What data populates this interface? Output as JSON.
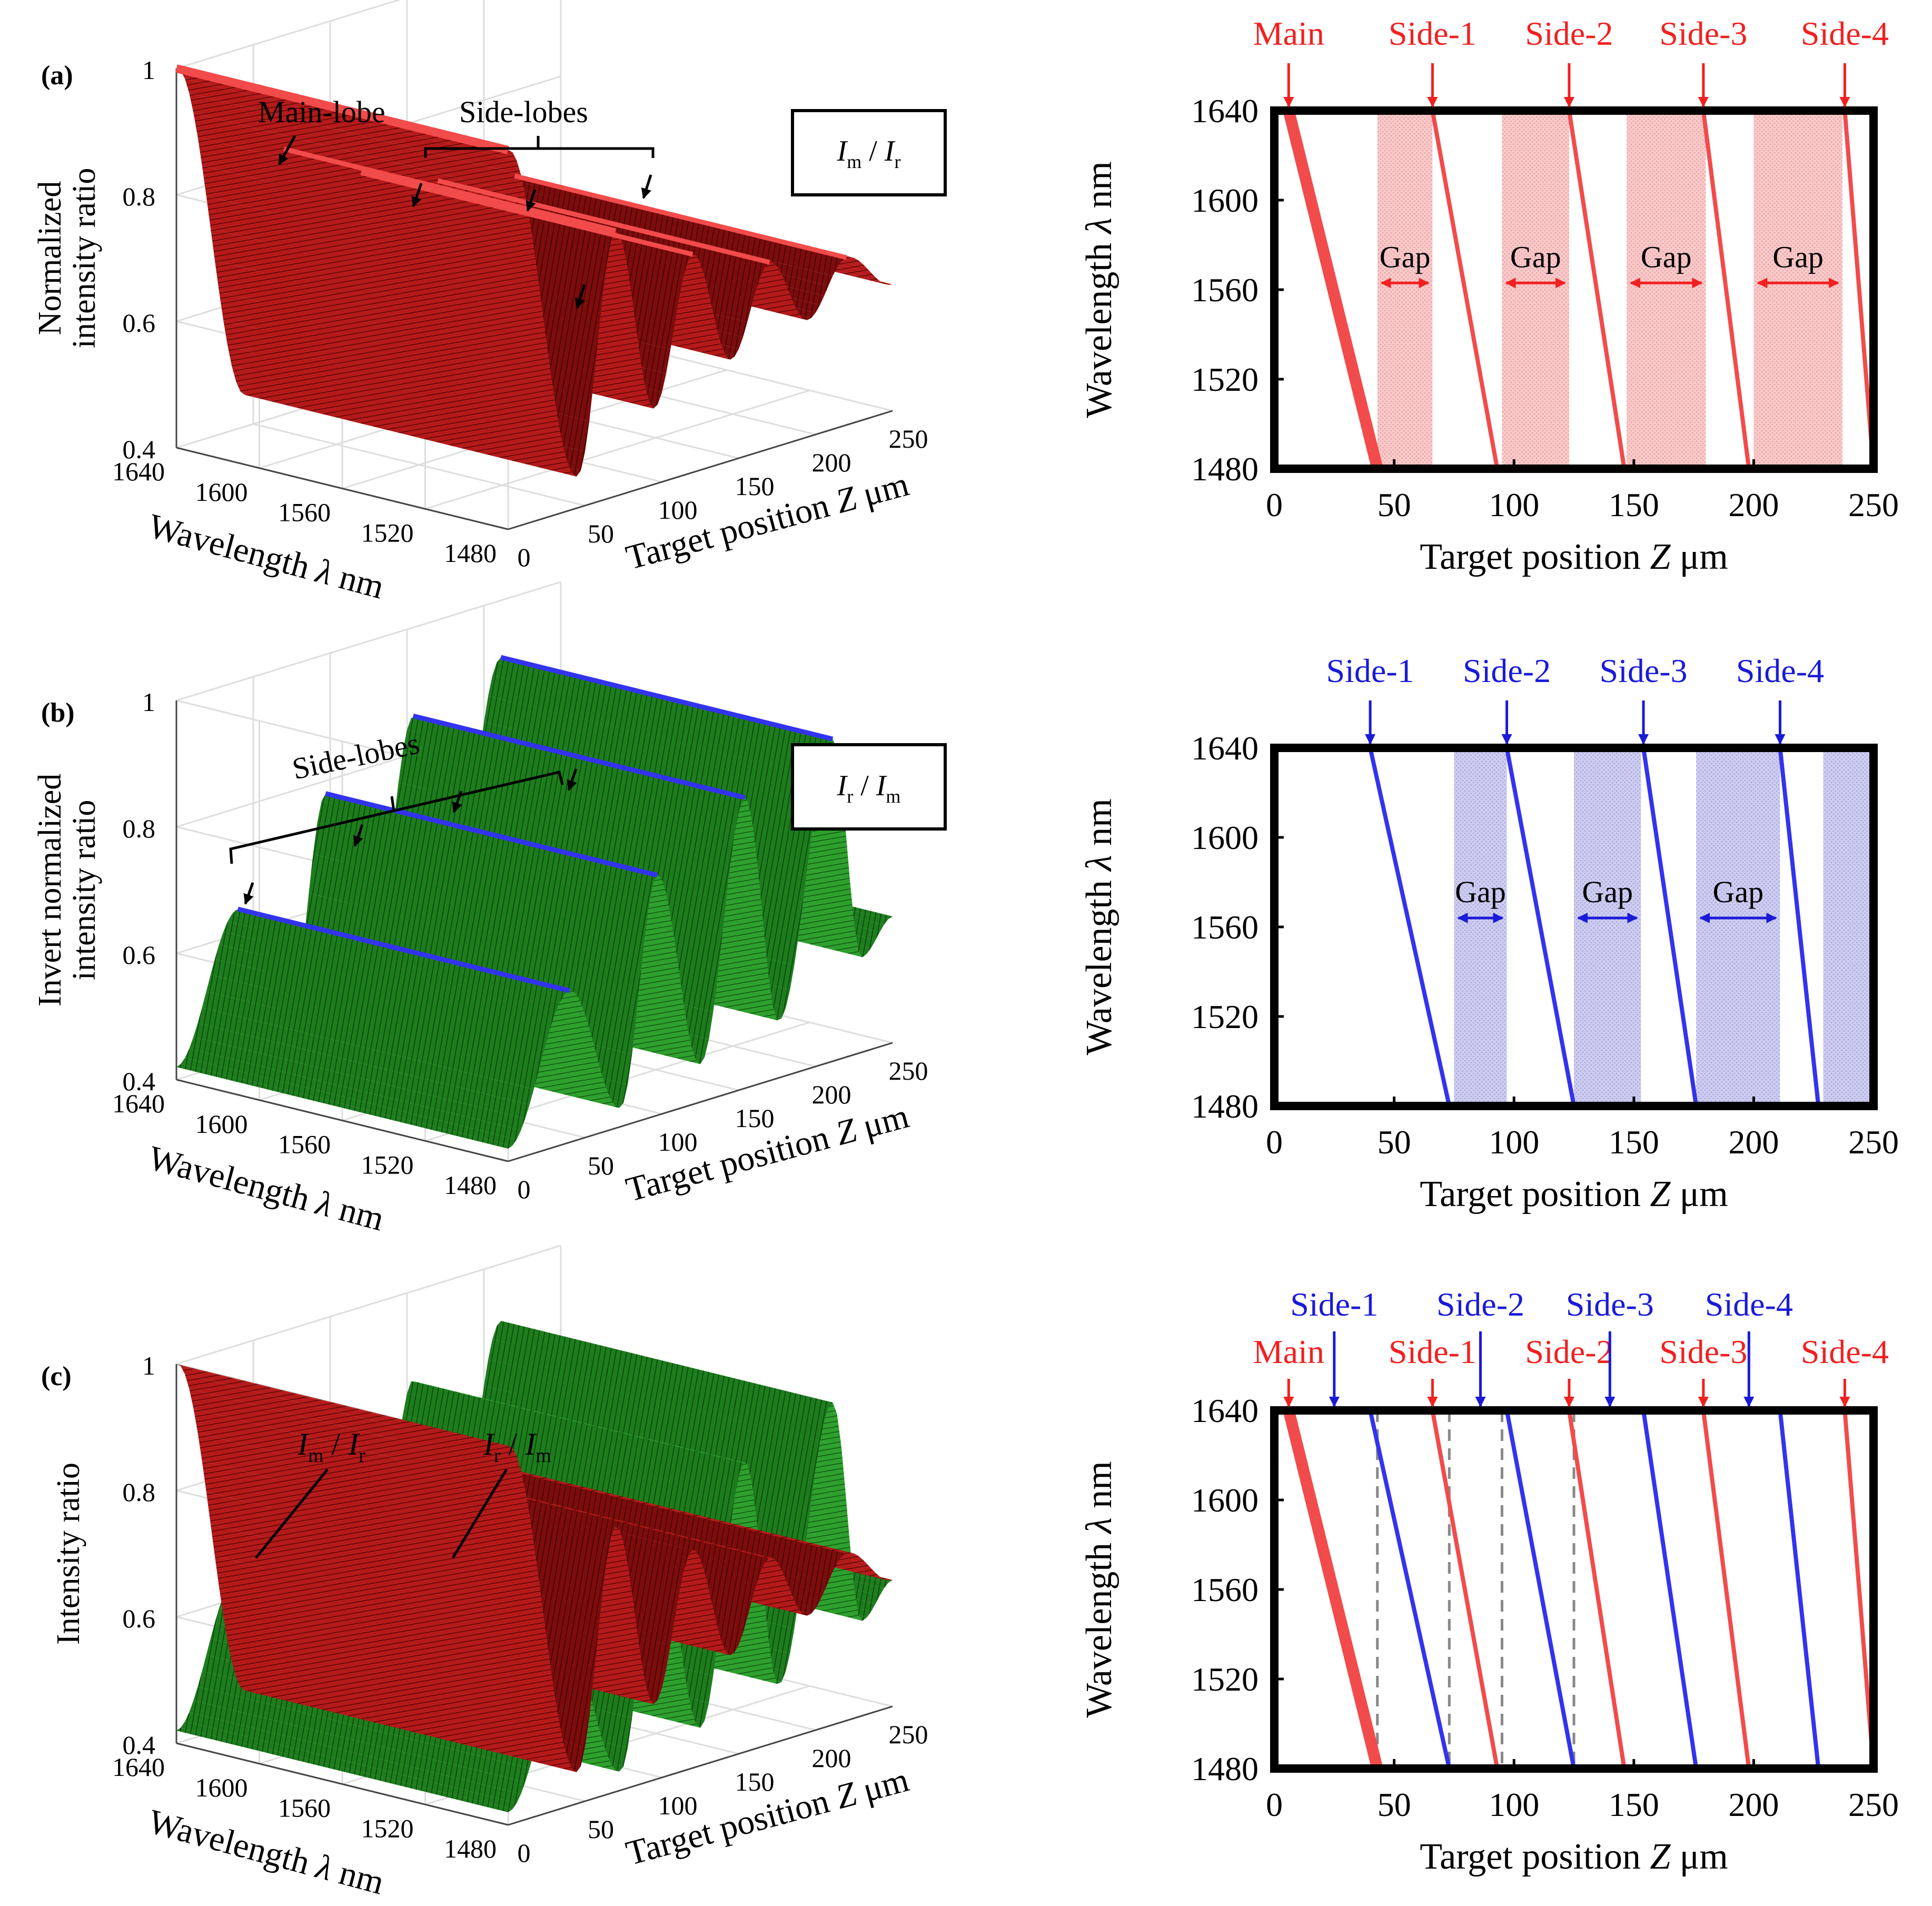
{
  "figure": {
    "panels": [
      {
        "label": "(a)",
        "ratio_num": "I",
        "ratio_num_sub": "m",
        "ratio_den": "I",
        "ratio_den_sub": "r"
      },
      {
        "label": "(b)",
        "ratio_num": "I",
        "ratio_num_sub": "r",
        "ratio_den": "I",
        "ratio_den_sub": "m"
      },
      {
        "label": "(c)"
      }
    ],
    "annotations_3d": {
      "main_lobe": "Main-lobe",
      "side_lobes": "Side-lobes",
      "ratio_a": "Im / Ir",
      "ratio_b": "Ir / Im",
      "ratio_c1": "Im / Ir",
      "ratio_c2": "Ir / Im"
    },
    "gap_label": "Gap",
    "colors": {
      "red": "#f24b4b",
      "red_dark": "#8b0e0e",
      "red_shade": "#f8c7c7",
      "blue": "#3333ee",
      "blue_shade": "#c9c9ee",
      "green": "#2c9e2c",
      "green_dark": "#0f5f0f",
      "black": "#000000"
    }
  },
  "chart_data": [
    {
      "type": "surface3d",
      "panel": "(a)",
      "zlabel": "Normalized intensity ratio",
      "ylabel": "Wavelength λ nm",
      "xlabel": "Target position Z μm",
      "zticks": [
        "0.4",
        "0.6",
        "0.8",
        "1"
      ],
      "wl_ticks": [
        "1640",
        "1600",
        "1560",
        "1520",
        "1480"
      ],
      "pos_ticks": [
        "0",
        "50",
        "100",
        "150",
        "200",
        "250"
      ],
      "zlim": [
        0.4,
        1
      ],
      "wl_range": [
        1480,
        1640
      ],
      "pos_range": [
        0,
        250
      ],
      "series": [
        {
          "name": "Im / Ir",
          "peaks_z": [
            1.0,
            0.82,
            0.74,
            0.69,
            0.66
          ]
        }
      ]
    },
    {
      "type": "line",
      "panel": "(a)",
      "xlabel": "Target position Z μm",
      "ylabel": "Wavelength λ nm",
      "xlim": [
        0,
        250
      ],
      "ylim": [
        1480,
        1640
      ],
      "xticks": [
        "0",
        "50",
        "100",
        "150",
        "200",
        "250"
      ],
      "yticks": [
        "1480",
        "1520",
        "1560",
        "1600",
        "1640"
      ],
      "series": [
        {
          "name": "Main",
          "x_at_1640": 6,
          "x_at_1480": 43,
          "color": "#f24b4b",
          "arrow_x": 6
        },
        {
          "name": "Side-1",
          "x_at_1640": 66,
          "x_at_1480": 93,
          "color": "#f24b4b",
          "arrow_x": 66
        },
        {
          "name": "Side-2",
          "x_at_1640": 123,
          "x_at_1480": 146,
          "color": "#f24b4b",
          "arrow_x": 123
        },
        {
          "name": "Side-3",
          "x_at_1640": 179,
          "x_at_1480": 198,
          "color": "#f24b4b",
          "arrow_x": 179
        },
        {
          "name": "Side-4",
          "x_at_1640": 238,
          "x_at_1480": 250,
          "color": "#f24b4b",
          "arrow_x": 238
        }
      ],
      "gaps": [
        [
          43,
          66
        ],
        [
          95,
          123
        ],
        [
          147,
          180
        ],
        [
          200,
          237
        ]
      ]
    },
    {
      "type": "surface3d",
      "panel": "(b)",
      "zlabel": "Invert normalized intensity ratio",
      "ylabel": "Wavelength λ nm",
      "xlabel": "Target position Z μm",
      "zticks": [
        "0.4",
        "0.6",
        "0.8",
        "1"
      ],
      "wl_ticks": [
        "1640",
        "1600",
        "1560",
        "1520",
        "1480"
      ],
      "pos_ticks": [
        "0",
        "50",
        "100",
        "150",
        "200",
        "250"
      ],
      "zlim": [
        0.4,
        1
      ],
      "wl_range": [
        1480,
        1640
      ],
      "pos_range": [
        0,
        250
      ],
      "series": [
        {
          "name": "Ir / Im",
          "peaks_z": [
            0.64,
            0.78,
            0.86,
            0.91
          ]
        }
      ]
    },
    {
      "type": "line",
      "panel": "(b)",
      "xlabel": "Target position Z μm",
      "ylabel": "Wavelength λ nm",
      "xlim": [
        0,
        250
      ],
      "ylim": [
        1480,
        1640
      ],
      "xticks": [
        "0",
        "50",
        "100",
        "150",
        "200",
        "250"
      ],
      "yticks": [
        "1480",
        "1520",
        "1560",
        "1600",
        "1640"
      ],
      "series": [
        {
          "name": "Side-1",
          "x_at_1640": 40,
          "x_at_1480": 73,
          "color": "#3333ee",
          "arrow_x": 40
        },
        {
          "name": "Side-2",
          "x_at_1640": 97,
          "x_at_1480": 125,
          "color": "#3333ee",
          "arrow_x": 97
        },
        {
          "name": "Side-3",
          "x_at_1640": 154,
          "x_at_1480": 176,
          "color": "#3333ee",
          "arrow_x": 154
        },
        {
          "name": "Side-4",
          "x_at_1640": 211,
          "x_at_1480": 227,
          "color": "#3333ee",
          "arrow_x": 211
        }
      ],
      "gaps": [
        [
          75,
          97
        ],
        [
          125,
          153
        ],
        [
          176,
          211
        ],
        [
          229,
          250
        ]
      ]
    },
    {
      "type": "surface3d",
      "panel": "(c)",
      "zlabel": "Intensity ratio",
      "ylabel": "Wavelength λ nm",
      "xlabel": "Target position Z μm",
      "zticks": [
        "0.4",
        "0.6",
        "0.8",
        "1"
      ],
      "wl_ticks": [
        "1640",
        "1600",
        "1560",
        "1520",
        "1480"
      ],
      "pos_ticks": [
        "0",
        "50",
        "100",
        "150",
        "200",
        "250"
      ],
      "zlim": [
        0.4,
        1
      ],
      "wl_range": [
        1480,
        1640
      ],
      "pos_range": [
        0,
        250
      ],
      "series": [
        {
          "name": "Im / Ir",
          "peaks_z": [
            1.0,
            0.82,
            0.74,
            0.69,
            0.66
          ]
        },
        {
          "name": "Ir / Im",
          "peaks_z": [
            0.64,
            0.78,
            0.86,
            0.91
          ]
        }
      ]
    },
    {
      "type": "line",
      "panel": "(c)",
      "xlabel": "Target position Z μm",
      "ylabel": "Wavelength λ nm",
      "xlim": [
        0,
        250
      ],
      "ylim": [
        1480,
        1640
      ],
      "xticks": [
        "0",
        "50",
        "100",
        "150",
        "200",
        "250"
      ],
      "yticks": [
        "1480",
        "1520",
        "1560",
        "1600",
        "1640"
      ],
      "series": [
        {
          "name": "Main",
          "x_at_1640": 6,
          "x_at_1480": 43,
          "color": "#f24b4b",
          "arrow_x": 6
        },
        {
          "name": "Side-1",
          "x_at_1640": 40,
          "x_at_1480": 73,
          "color": "#3333ee",
          "arrow_x": 25
        },
        {
          "name": "Side-1",
          "x_at_1640": 66,
          "x_at_1480": 93,
          "color": "#f24b4b",
          "arrow_x": 66
        },
        {
          "name": "Side-2",
          "x_at_1640": 97,
          "x_at_1480": 125,
          "color": "#3333ee",
          "arrow_x": 86
        },
        {
          "name": "Side-2",
          "x_at_1640": 123,
          "x_at_1480": 146,
          "color": "#f24b4b",
          "arrow_x": 123
        },
        {
          "name": "Side-3",
          "x_at_1640": 154,
          "x_at_1480": 176,
          "color": "#3333ee",
          "arrow_x": 140
        },
        {
          "name": "Side-3",
          "x_at_1640": 179,
          "x_at_1480": 198,
          "color": "#f24b4b",
          "arrow_x": 179
        },
        {
          "name": "Side-4",
          "x_at_1640": 211,
          "x_at_1480": 227,
          "color": "#3333ee",
          "arrow_x": 198
        },
        {
          "name": "Side-4",
          "x_at_1640": 238,
          "x_at_1480": 250,
          "color": "#f24b4b",
          "arrow_x": 238
        }
      ],
      "dashed_x": [
        43,
        73,
        95,
        125
      ]
    }
  ]
}
